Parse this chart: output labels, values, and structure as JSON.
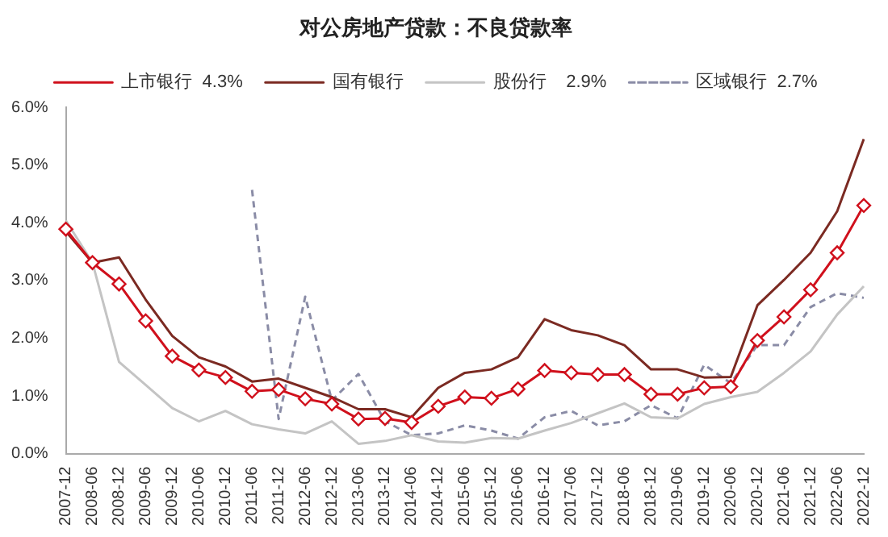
{
  "chart_data": {
    "type": "line",
    "title": "对公房地产贷款：不良贷款率",
    "categories": [
      "2007-12",
      "2008-06",
      "2008-12",
      "2009-06",
      "2009-12",
      "2010-06",
      "2010-12",
      "2011-06",
      "2011-12",
      "2012-06",
      "2012-12",
      "2013-06",
      "2013-12",
      "2014-06",
      "2014-12",
      "2015-06",
      "2015-12",
      "2016-06",
      "2016-12",
      "2017-06",
      "2017-12",
      "2018-06",
      "2018-12",
      "2019-06",
      "2019-12",
      "2020-06",
      "2020-12",
      "2021-06",
      "2021-12",
      "2022-06",
      "2022-12"
    ],
    "series": [
      {
        "name": "上市银行  4.3%",
        "color": "#d0101c",
        "marker": "diamond",
        "line_style": "solid",
        "values": [
          3.89,
          3.31,
          2.94,
          2.3,
          1.69,
          1.45,
          1.32,
          1.08,
          1.11,
          0.95,
          0.86,
          0.6,
          0.61,
          0.54,
          0.82,
          0.98,
          0.96,
          1.12,
          1.44,
          1.4,
          1.37,
          1.37,
          1.03,
          1.03,
          1.14,
          1.16,
          1.96,
          2.37,
          2.84,
          3.48,
          4.3
        ]
      },
      {
        "name": "国有银行",
        "color": "#7b2a22",
        "marker": "none",
        "line_style": "solid",
        "values": [
          3.85,
          3.31,
          3.4,
          2.67,
          2.04,
          1.67,
          1.51,
          1.25,
          1.3,
          1.14,
          0.98,
          0.77,
          0.77,
          0.63,
          1.14,
          1.4,
          1.46,
          1.67,
          2.33,
          2.14,
          2.05,
          1.88,
          1.46,
          1.46,
          1.32,
          1.33,
          2.57,
          3.01,
          3.48,
          4.2,
          5.45
        ]
      },
      {
        "name": "股份行    2.9%",
        "color": "#c4c4c4",
        "marker": "none",
        "line_style": "solid",
        "values": [
          4.04,
          3.31,
          1.59,
          1.19,
          0.79,
          0.56,
          0.74,
          0.51,
          0.42,
          0.35,
          0.56,
          0.17,
          0.22,
          0.32,
          0.21,
          0.19,
          0.27,
          0.26,
          0.4,
          0.53,
          0.7,
          0.87,
          0.63,
          0.61,
          0.86,
          0.98,
          1.07,
          1.4,
          1.77,
          2.41,
          2.9
        ]
      },
      {
        "name": "区域银行  2.7%",
        "color": "#8a8ca6",
        "marker": "none",
        "line_style": "dashed",
        "values": [
          null,
          null,
          null,
          null,
          null,
          null,
          null,
          4.57,
          0.6,
          2.72,
          0.92,
          1.38,
          0.56,
          0.32,
          0.35,
          0.49,
          0.4,
          0.26,
          0.63,
          0.74,
          0.49,
          0.56,
          0.84,
          0.61,
          1.54,
          1.22,
          1.88,
          1.88,
          2.54,
          2.78,
          2.7
        ]
      }
    ],
    "ylim": [
      0,
      6
    ],
    "yticks": [
      {
        "value": 0,
        "label": "0.0%"
      },
      {
        "value": 1,
        "label": "1.0%"
      },
      {
        "value": 2,
        "label": "2.0%"
      },
      {
        "value": 3,
        "label": "3.0%"
      },
      {
        "value": 4,
        "label": "4.0%"
      },
      {
        "value": 5,
        "label": "5.0%"
      },
      {
        "value": 6,
        "label": "6.0%"
      }
    ],
    "grid": false,
    "legend": "top"
  }
}
